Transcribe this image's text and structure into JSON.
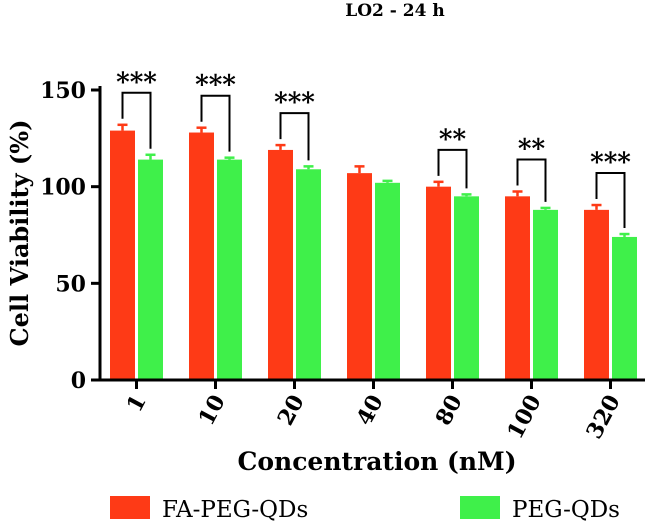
{
  "chart_data": {
    "type": "bar",
    "title": "LO2 - 24 h",
    "xlabel": "Concentration (nM)",
    "ylabel": "Cell Viability (%)",
    "ylim": [
      0,
      150
    ],
    "yticks": [
      0,
      50,
      100,
      150
    ],
    "grid": false,
    "legend_position": "bottom",
    "categories": [
      "1",
      "10",
      "20",
      "40",
      "80",
      "100",
      "320"
    ],
    "series": [
      {
        "name": "FA-PEG-QDs",
        "color": "#fe3a16",
        "values": [
          129,
          128,
          119,
          107,
          100,
          95,
          88
        ],
        "errors": [
          3,
          2.5,
          2.5,
          3.5,
          2.5,
          2.5,
          2.5
        ]
      },
      {
        "name": "PEG-QDs",
        "color": "#3ff04a",
        "values": [
          114,
          114,
          109,
          102,
          95,
          88,
          74
        ],
        "errors": [
          2.5,
          1,
          1.5,
          1,
          1,
          1,
          1.5
        ]
      }
    ],
    "significance": [
      "***",
      "***",
      "***",
      "",
      "**",
      "**",
      "***"
    ]
  }
}
